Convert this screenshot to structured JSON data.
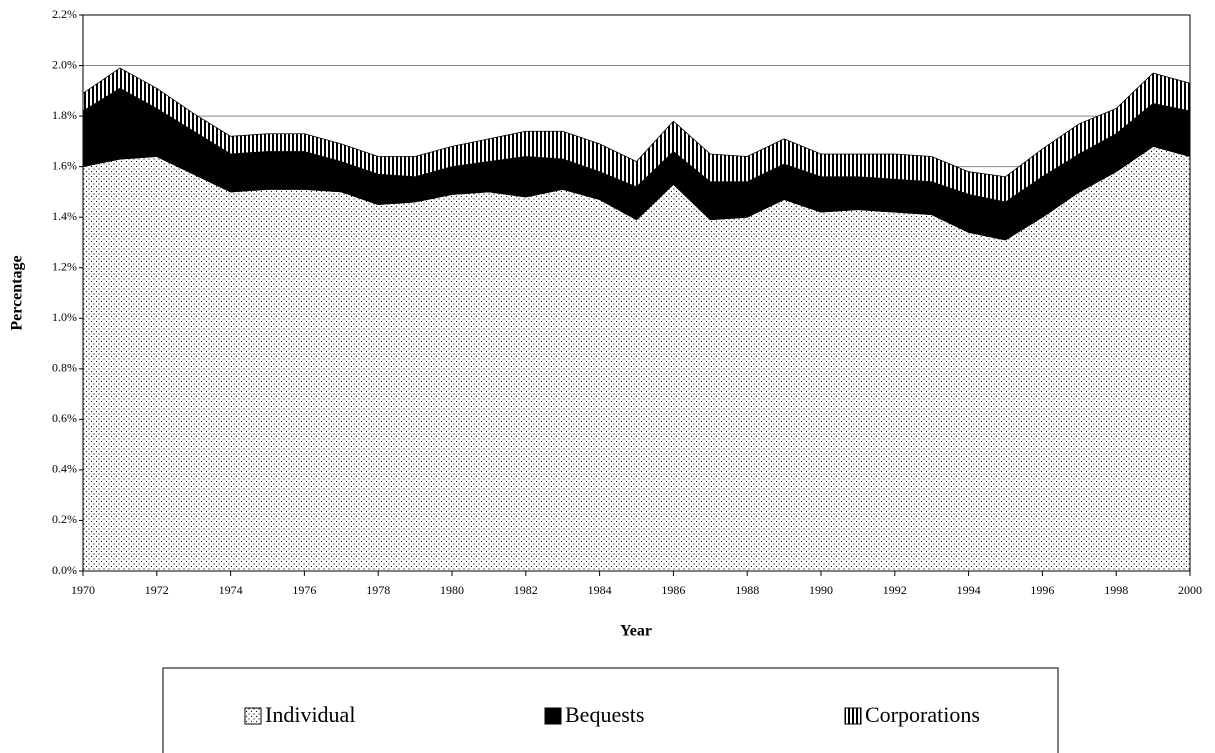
{
  "chart_data": {
    "type": "stacked_area",
    "x_label": "Year",
    "y_label": "Percentage",
    "x": [
      1970,
      1971,
      1972,
      1973,
      1974,
      1975,
      1976,
      1977,
      1978,
      1979,
      1980,
      1981,
      1982,
      1983,
      1984,
      1985,
      1986,
      1987,
      1988,
      1989,
      1990,
      1991,
      1992,
      1993,
      1994,
      1995,
      1996,
      1997,
      1998,
      1999,
      2000
    ],
    "series": [
      {
        "name": "Individual",
        "color": "#000000",
        "pattern": "dots",
        "values": [
          1.6,
          1.63,
          1.64,
          1.57,
          1.5,
          1.51,
          1.51,
          1.5,
          1.45,
          1.46,
          1.49,
          1.5,
          1.48,
          1.51,
          1.47,
          1.39,
          1.53,
          1.39,
          1.4,
          1.47,
          1.42,
          1.43,
          1.42,
          1.41,
          1.34,
          1.31,
          1.4,
          1.5,
          1.58,
          1.68,
          1.64
        ]
      },
      {
        "name": "Bequests",
        "color": "#000000",
        "pattern": "solid",
        "values": [
          0.22,
          0.28,
          0.19,
          0.17,
          0.15,
          0.15,
          0.15,
          0.12,
          0.12,
          0.1,
          0.11,
          0.12,
          0.16,
          0.12,
          0.11,
          0.13,
          0.13,
          0.15,
          0.14,
          0.14,
          0.14,
          0.13,
          0.13,
          0.13,
          0.15,
          0.15,
          0.16,
          0.15,
          0.15,
          0.17,
          0.18
        ]
      },
      {
        "name": "Corporations",
        "color": "#000000",
        "pattern": "stripes",
        "values": [
          0.07,
          0.08,
          0.08,
          0.07,
          0.07,
          0.07,
          0.07,
          0.07,
          0.07,
          0.08,
          0.08,
          0.09,
          0.1,
          0.11,
          0.11,
          0.1,
          0.12,
          0.11,
          0.1,
          0.1,
          0.09,
          0.09,
          0.1,
          0.1,
          0.09,
          0.1,
          0.11,
          0.12,
          0.1,
          0.12,
          0.11
        ]
      }
    ],
    "xlim": [
      1970,
      2000
    ],
    "xticks": [
      1970,
      1972,
      1974,
      1976,
      1978,
      1980,
      1982,
      1984,
      1986,
      1988,
      1990,
      1992,
      1994,
      1996,
      1998,
      2000
    ],
    "ylim": [
      0,
      2.2
    ],
    "yticks": [
      {
        "value": 0,
        "label": "0.0%"
      },
      {
        "value": 0.2,
        "label": "0.2%"
      },
      {
        "value": 0.4,
        "label": "0.4%"
      },
      {
        "value": 0.6,
        "label": "0.6%"
      },
      {
        "value": 0.8,
        "label": "0.8%"
      },
      {
        "value": 1.0,
        "label": "1.0%"
      },
      {
        "value": 1.2,
        "label": "1.2%"
      },
      {
        "value": 1.4,
        "label": "1.4%"
      },
      {
        "value": 1.6,
        "label": "1.6%"
      },
      {
        "value": 1.8,
        "label": "1.8%"
      },
      {
        "value": 2.0,
        "label": "2.0%"
      },
      {
        "value": 2.2,
        "label": "2.2%"
      }
    ],
    "grid": true,
    "legend": "bottom"
  }
}
